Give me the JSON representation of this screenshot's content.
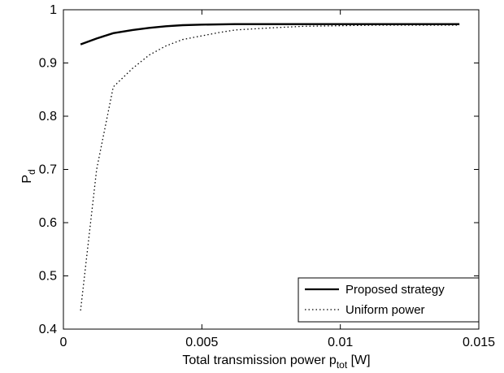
{
  "chart_data": {
    "type": "line",
    "xlabel": {
      "main": "Total transmission power p",
      "sub": "tot",
      "tail": " [W]"
    },
    "ylabel": {
      "main": "P",
      "sub": "d"
    },
    "xlim": [
      0,
      0.015
    ],
    "ylim": [
      0.4,
      1.0
    ],
    "xticks": [
      0,
      0.005,
      0.01,
      0.015
    ],
    "xtick_labels": [
      "0",
      "0.005",
      "0.01",
      "0.015"
    ],
    "yticks": [
      0.4,
      0.5,
      0.6,
      0.7,
      0.8,
      0.9,
      1.0
    ],
    "ytick_labels": [
      "0.4",
      "0.5",
      "0.6",
      "0.7",
      "0.8",
      "0.9",
      "1"
    ],
    "grid": false,
    "legend_position": "bottom-right",
    "series": [
      {
        "name": "Proposed strategy",
        "style": "solid",
        "color": "#000000",
        "x": [
          0.00062,
          0.0012,
          0.0018,
          0.0025,
          0.0031,
          0.0037,
          0.0043,
          0.005,
          0.0062,
          0.0075,
          0.0087,
          0.01,
          0.0112,
          0.0125,
          0.0137,
          0.0143
        ],
        "y": [
          0.935,
          0.946,
          0.956,
          0.962,
          0.966,
          0.969,
          0.971,
          0.972,
          0.973,
          0.973,
          0.973,
          0.973,
          0.973,
          0.973,
          0.973,
          0.973
        ]
      },
      {
        "name": "Uniform power",
        "style": "dotted",
        "color": "#000000",
        "x": [
          0.00062,
          0.0012,
          0.0018,
          0.0025,
          0.0031,
          0.0037,
          0.0043,
          0.005,
          0.0056,
          0.0062,
          0.0075,
          0.0087,
          0.01,
          0.0112,
          0.0125,
          0.0137,
          0.0143
        ],
        "y": [
          0.435,
          0.7,
          0.855,
          0.89,
          0.915,
          0.932,
          0.944,
          0.951,
          0.957,
          0.962,
          0.966,
          0.969,
          0.97,
          0.971,
          0.971,
          0.971,
          0.971
        ]
      }
    ]
  }
}
